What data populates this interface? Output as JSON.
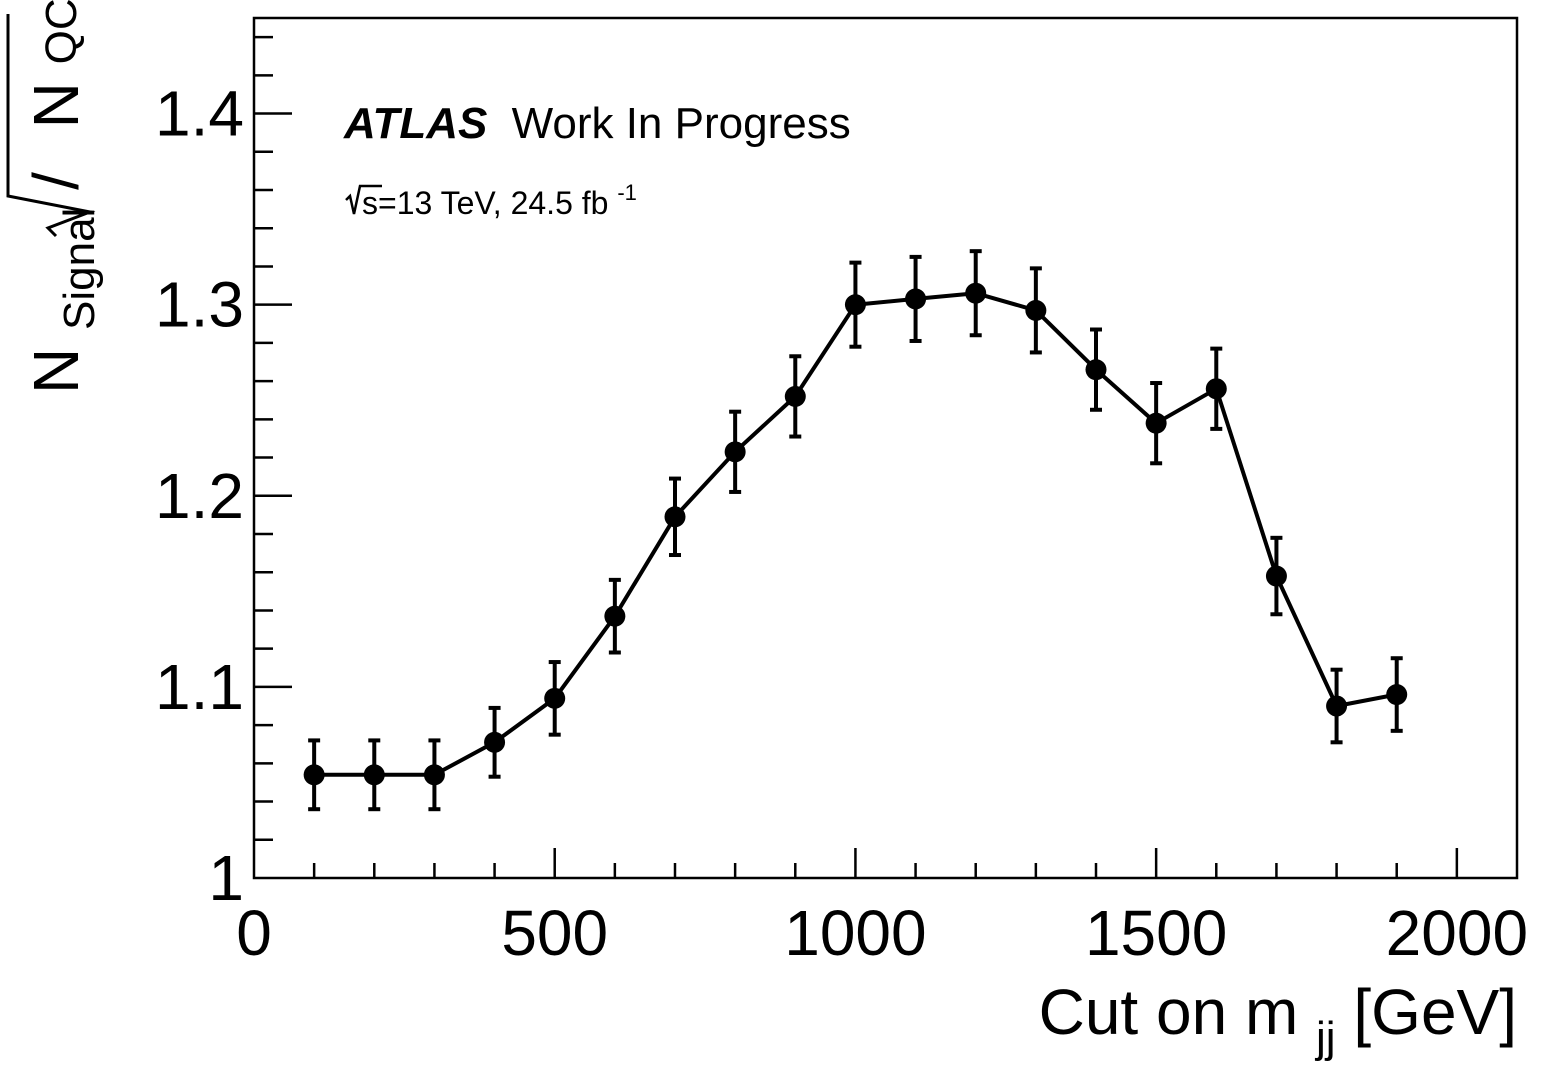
{
  "chart_data": {
    "type": "line",
    "annotation": {
      "experiment": "ATLAS",
      "status": "Work In Progress",
      "energy_prefix": "s=13 TeV, 24.5 fb",
      "lumi_exponent": "-1"
    },
    "xlabel": {
      "main": "Cut on m",
      "sub": "jj",
      "unit": " [GeV]"
    },
    "ylabel": {
      "num_base": "N",
      "num_sub": "Signal",
      "sep": " / ",
      "den_base": "N",
      "den_sub": "QCD"
    },
    "xlim": [
      0,
      2100
    ],
    "ylim": [
      1.0,
      1.45
    ],
    "xticks": [
      0,
      500,
      1000,
      1500,
      2000
    ],
    "xtick_labels": [
      "0",
      "500",
      "1000",
      "1500",
      "2000"
    ],
    "yticks": [
      1.0,
      1.1,
      1.2,
      1.3,
      1.4
    ],
    "ytick_labels": [
      "1",
      "1.1",
      "1.2",
      "1.3",
      "1.4"
    ],
    "grid": false,
    "series": [
      {
        "x": [
          100,
          200,
          300,
          400,
          500,
          600,
          700,
          800,
          900,
          1000,
          1100,
          1200,
          1300,
          1400,
          1500,
          1600,
          1700,
          1800,
          1900
        ],
        "y": [
          1.054,
          1.054,
          1.054,
          1.071,
          1.094,
          1.137,
          1.189,
          1.223,
          1.252,
          1.3,
          1.303,
          1.306,
          1.297,
          1.266,
          1.238,
          1.256,
          1.158,
          1.09,
          1.096
        ],
        "yerr": [
          0.018,
          0.018,
          0.018,
          0.018,
          0.019,
          0.019,
          0.02,
          0.021,
          0.021,
          0.022,
          0.022,
          0.022,
          0.022,
          0.021,
          0.021,
          0.021,
          0.02,
          0.019,
          0.019
        ]
      }
    ]
  }
}
